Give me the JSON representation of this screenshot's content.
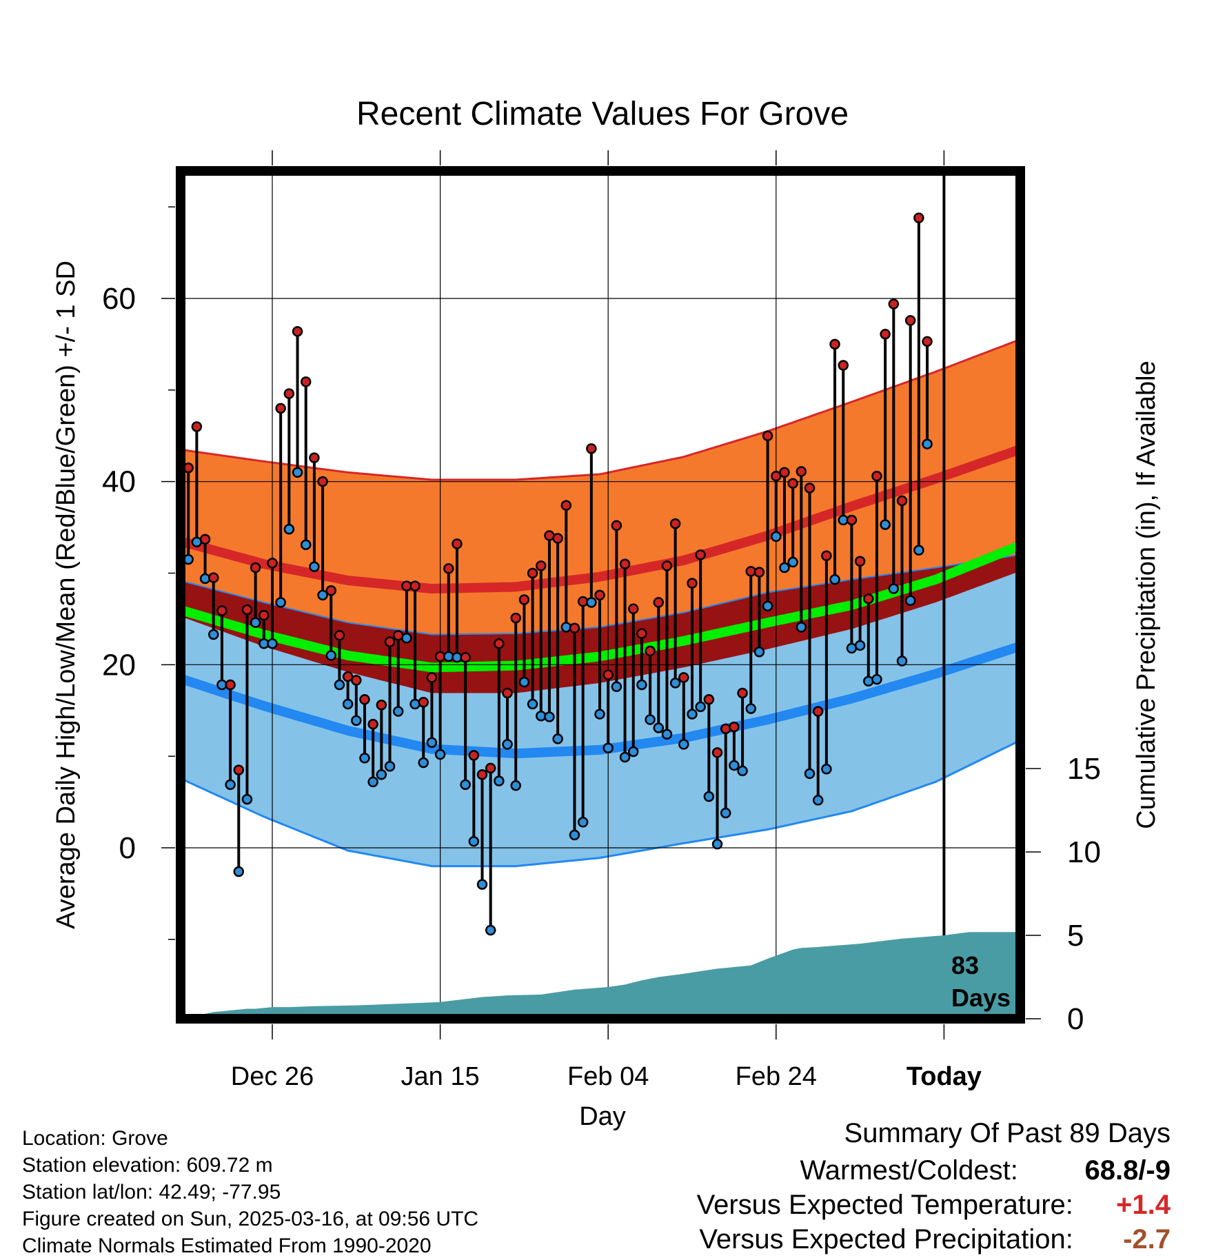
{
  "chart_data": {
    "type": "line",
    "title": "Recent Climate Values For Grove",
    "xlabel": "Day",
    "ylabel": "Average Daily High/Low/Mean (Red/Blue/Green) +/- 1 SD",
    "y2label": "Cumulative Precipitation (in), If Available",
    "x_tick_labels": [
      "Dec 26",
      "Jan 15",
      "Feb 04",
      "Feb 24",
      "Today"
    ],
    "y_ticks": [
      0,
      20,
      40,
      60
    ],
    "y_range": [
      -18,
      74
    ],
    "y2_ticks": [
      0,
      5,
      10,
      15
    ],
    "y2_range": [
      0,
      44
    ],
    "days_label": [
      "83",
      "Days"
    ],
    "grid": true,
    "colors": {
      "high": "#d62728",
      "high_band": "#f5792c",
      "low": "#2388f0",
      "low_band": "#85c2e8",
      "mean": "#00ee00",
      "overlap": "#971213",
      "precip": "#4a9ca4",
      "high_dot": "#cc2222",
      "low_dot": "#2e8ed8"
    },
    "normals": {
      "days": [
        -11,
        -1,
        9,
        19,
        29,
        39,
        49,
        59,
        69,
        79,
        89
      ],
      "high_mean": [
        33.5,
        31.0,
        29.2,
        28.3,
        28.5,
        29.6,
        31.4,
        34.1,
        37.3,
        40.3,
        43.5
      ],
      "high_sd_upper": [
        43.5,
        42.2,
        41.0,
        40.2,
        40.2,
        40.8,
        42.7,
        45.5,
        48.7,
        52.0,
        55.5
      ],
      "low_mean": [
        18.5,
        15.5,
        12.8,
        10.8,
        10.3,
        10.7,
        12.0,
        14.0,
        16.3,
        19.0,
        22.0
      ],
      "low_sd_lower": [
        7.6,
        3.4,
        -0.3,
        -2.0,
        -2.0,
        -1.1,
        0.5,
        2.0,
        4.0,
        7.2,
        11.7
      ],
      "mean": [
        26.0,
        23.3,
        21.0,
        19.7,
        19.9,
        20.9,
        22.6,
        24.6,
        26.5,
        29.3,
        33.0
      ],
      "mean_band_upper": [
        29.2,
        26.8,
        24.6,
        23.3,
        23.4,
        24.1,
        25.7,
        27.9,
        29.3,
        30.6,
        32.0
      ],
      "mean_band_lower": [
        25.3,
        22.0,
        19.2,
        16.9,
        16.9,
        18.0,
        19.7,
        21.7,
        23.9,
        26.8,
        30.2
      ]
    },
    "daily": {
      "start_day": -10,
      "high": [
        41.5,
        46.0,
        33.7,
        29.5,
        25.9,
        17.8,
        8.5,
        26.0,
        30.6,
        25.4,
        31.1,
        48.0,
        49.6,
        56.4,
        50.9,
        42.6,
        40.0,
        28.1,
        23.2,
        18.7,
        18.3,
        16.2,
        13.5,
        15.6,
        22.5,
        23.2,
        28.6,
        28.6,
        15.9,
        18.6,
        20.9,
        30.5,
        33.2,
        20.8,
        10.1,
        8.0,
        8.7,
        22.3,
        16.9,
        25.1,
        27.1,
        30.0,
        30.8,
        34.1,
        33.8,
        37.4,
        24.0,
        26.9,
        43.6,
        27.6,
        18.9,
        35.2,
        31.0,
        26.1,
        23.4,
        21.5,
        26.8,
        30.8,
        35.4,
        18.6,
        28.9,
        32.0,
        16.2,
        10.4,
        13.0,
        13.2,
        16.9,
        30.2,
        30.1,
        45.0,
        40.6,
        41.0,
        39.8,
        41.1,
        39.3,
        14.9,
        31.9,
        55.0,
        52.7,
        35.8,
        31.3,
        27.2,
        40.6,
        56.1,
        59.4,
        37.9,
        57.6,
        68.8,
        55.3
      ],
      "low": [
        31.5,
        33.4,
        29.4,
        23.3,
        17.8,
        6.9,
        -2.6,
        5.3,
        24.6,
        22.3,
        22.3,
        26.8,
        34.8,
        41.0,
        33.1,
        30.7,
        27.6,
        21.0,
        17.8,
        15.7,
        13.9,
        9.8,
        7.2,
        8.0,
        8.9,
        14.9,
        22.9,
        15.7,
        9.3,
        11.5,
        10.2,
        20.9,
        20.8,
        6.9,
        0.7,
        -4.0,
        -9.0,
        7.3,
        11.3,
        6.8,
        18.1,
        15.7,
        14.4,
        14.3,
        11.9,
        24.1,
        1.4,
        2.8,
        26.8,
        14.6,
        10.9,
        17.6,
        9.9,
        10.5,
        17.8,
        14.0,
        13.1,
        12.4,
        18.0,
        11.3,
        14.6,
        15.4,
        5.6,
        0.4,
        3.8,
        9.0,
        8.4,
        15.2,
        21.4,
        26.4,
        34.0,
        30.6,
        31.2,
        24.1,
        8.1,
        5.2,
        8.6,
        29.3,
        35.8,
        21.8,
        22.1,
        18.2,
        18.4,
        35.3,
        28.3,
        20.4,
        27.0,
        32.5,
        44.1
      ]
    },
    "precip": {
      "days": [
        -11,
        -9,
        -8,
        -7,
        -6,
        -5,
        -4,
        -3,
        -2,
        0,
        2,
        5,
        10,
        15,
        20,
        25,
        28,
        32,
        36,
        40,
        42,
        44,
        46,
        49,
        51,
        53,
        55,
        57,
        59,
        62,
        63,
        65,
        70,
        75,
        80,
        83,
        85,
        88,
        89
      ],
      "cum": [
        0.0,
        0.2,
        0.3,
        0.4,
        0.45,
        0.5,
        0.55,
        0.6,
        0.6,
        0.7,
        0.7,
        0.75,
        0.8,
        0.9,
        1.0,
        1.3,
        1.4,
        1.45,
        1.75,
        1.9,
        2.05,
        2.3,
        2.5,
        2.7,
        2.85,
        3.0,
        3.1,
        3.2,
        3.6,
        4.15,
        4.25,
        4.3,
        4.5,
        4.8,
        5.0,
        5.2,
        5.2,
        5.2,
        5.2
      ]
    }
  },
  "info": {
    "location": "Location: Grove",
    "elevation": "Station elevation: 609.72 m",
    "latlon": "Station lat/lon: 42.49; -77.95",
    "created": "Figure created on Sun, 2025-03-16, at 09:56 UTC",
    "normals": "Climate Normals Estimated From 1990-2020"
  },
  "summary": {
    "title": "Summary Of Past 89 Days",
    "warmest_label": "Warmest/Coldest:",
    "warmest_value": "68.8/-9",
    "temp_label": "Versus Expected Temperature:",
    "temp_value": "+1.4",
    "temp_color": "#d62728",
    "precip_label": "Versus Expected Precipitation:",
    "precip_value": "-2.7",
    "precip_color": "#a0522d"
  }
}
